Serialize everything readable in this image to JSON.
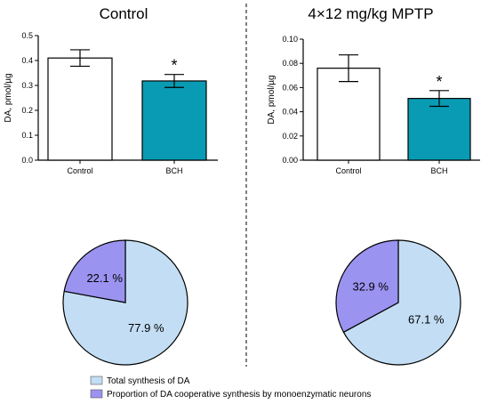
{
  "colors": {
    "control_bar": "#ffffff",
    "bch_bar": "#0a9bb4",
    "pie_total": "#c3def4",
    "pie_cooperative": "#9b93f0"
  },
  "panels": [
    {
      "title": "Control"
    },
    {
      "title": "4×12 mg/kg MPTP"
    }
  ],
  "legend": {
    "items": [
      {
        "label": "Total synthesis of DA"
      },
      {
        "label": "Proportion of DA cooperative synthesis by monoenzymatic neurons"
      }
    ]
  },
  "chart_data": [
    {
      "type": "bar",
      "title": "Control",
      "ylabel": "DA, pmol/µg",
      "ylim": [
        0,
        0.5
      ],
      "yticks": [
        "0.0",
        "0.1",
        "0.2",
        "0.3",
        "0.4",
        "0.5"
      ],
      "categories": [
        "Control",
        "BCH"
      ],
      "values": [
        0.41,
        0.318
      ],
      "errors": [
        0.033,
        0.026
      ],
      "significance": [
        "",
        "*"
      ]
    },
    {
      "type": "bar",
      "title": "4×12 mg/kg MPTP",
      "ylabel": "DA, pmol/µg",
      "ylim": [
        0,
        0.1
      ],
      "yticks": [
        "0.00",
        "0.02",
        "0.04",
        "0.06",
        "0.08",
        "0.10"
      ],
      "categories": [
        "Control",
        "BCH"
      ],
      "values": [
        0.076,
        0.051
      ],
      "errors": [
        0.011,
        0.0065
      ],
      "significance": [
        "",
        "*"
      ]
    },
    {
      "type": "pie",
      "title": "Control",
      "slices": [
        {
          "name": "Total synthesis of DA",
          "value": 77.9,
          "label": "77.9 %"
        },
        {
          "name": "Proportion of DA cooperative synthesis by monoenzymatic neurons",
          "value": 22.1,
          "label": "22.1 %"
        }
      ]
    },
    {
      "type": "pie",
      "title": "4×12 mg/kg MPTP",
      "slices": [
        {
          "name": "Total synthesis of DA",
          "value": 67.1,
          "label": "67.1 %"
        },
        {
          "name": "Proportion of DA cooperative synthesis by monoenzymatic neurons",
          "value": 32.9,
          "label": "32.9 %"
        }
      ]
    }
  ]
}
